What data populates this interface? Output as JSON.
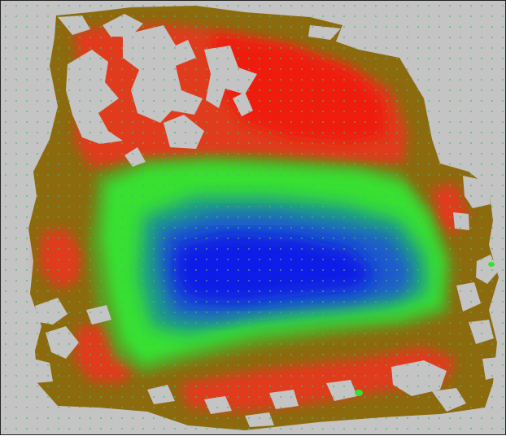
{
  "map": {
    "type": "heatmap",
    "background_color": "#c4c4c4",
    "grid_dot_color": "#52b26a",
    "palette": {
      "edge": "#8c6a0e",
      "outer": "#e03a1a",
      "outer_strong": "#ee1a08",
      "mid_outer": "#5aa020",
      "mid": "#38e032",
      "mid_inner": "#1a9a8a",
      "inner": "#1a5acc",
      "core": "#0a1ae6"
    },
    "legend": null
  }
}
